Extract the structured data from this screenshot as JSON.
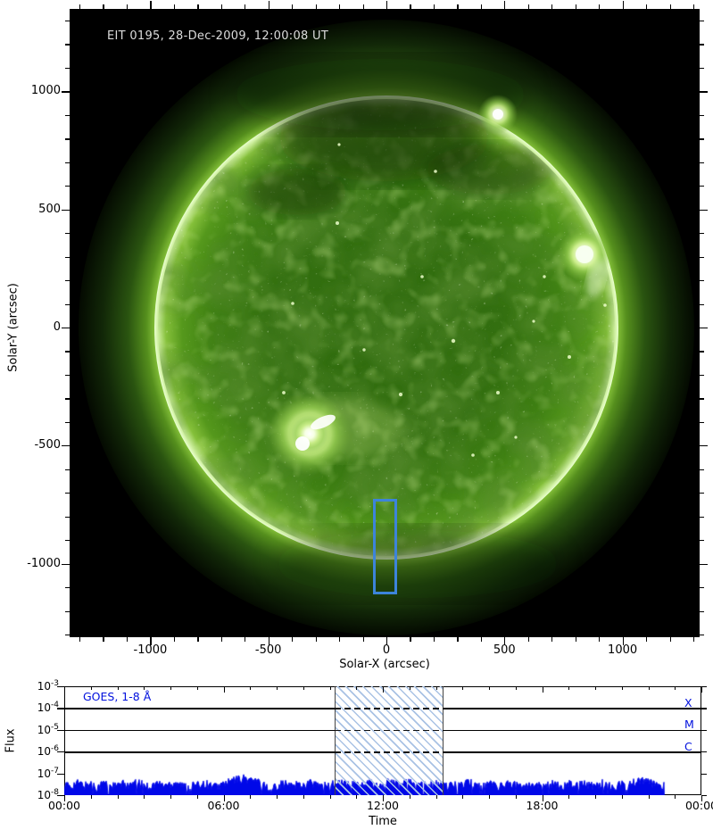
{
  "solar_image": {
    "title": "EIT 0195, 28-Dec-2009, 12:00:08 UT",
    "xlabel": "Solar-X (arcsec)",
    "ylabel": "Solar-Y (arcsec)",
    "x_tick_values": [
      -1000,
      -500,
      0,
      500,
      1000
    ],
    "y_tick_values": [
      1000,
      500,
      0,
      -500,
      -1000
    ],
    "minor_tick_step_arcsec": 100,
    "x_range_arcsec": [
      -1341,
      1327
    ],
    "y_range_arcsec": [
      -1312,
      1349
    ],
    "annotation_box_arcsec": {
      "x_min": -57,
      "x_max": 45,
      "y_min": -1130,
      "y_max": -727
    },
    "colors": {
      "background": "#000000",
      "disk_green": "#3f8013",
      "limb_bright": "#eaffd2",
      "corona_glow": "#66a822",
      "annotation_blue": "#3d84da",
      "title_text": "#dcdcdc"
    }
  },
  "chart_data": {
    "type": "line",
    "title": "GOES, 1-8 Å",
    "xlabel": "Time",
    "ylabel": "Flux",
    "x_tick_labels": [
      "00:00",
      "06:00",
      "12:00",
      "18:00",
      "00:00"
    ],
    "x_axis_hours": [
      0,
      24
    ],
    "y_scale": "log",
    "ylim_wm2": [
      1e-08,
      0.001
    ],
    "y_tick_exponents": [
      -3,
      -4,
      -5,
      -6,
      -7,
      -8
    ],
    "grid": "horizontal-solid-at-flare-class-levels",
    "legend_position": "top-left-inside",
    "accent_blue": "#0010dd",
    "hatch_blue": "#a9c2e4",
    "flare_class_lines": [
      {
        "label": "X",
        "flux_wm2": 0.0001
      },
      {
        "label": "M",
        "flux_wm2": 1e-05
      },
      {
        "label": "C",
        "flux_wm2": 1e-06
      }
    ],
    "highlight_window_hours": [
      10.2,
      14.3
    ],
    "series": [
      {
        "name": "GOES 1-8 Å X-ray flux",
        "t_start_hour": 0,
        "t_step_hour": 0.25,
        "t_end_hour": 22.6,
        "unit_scale_wm2": 1e-08,
        "values_1e8": [
          3.2,
          2.6,
          3.8,
          2.9,
          3.5,
          2.4,
          3.9,
          3.0,
          2.7,
          3.6,
          2.8,
          4.0,
          3.1,
          2.5,
          3.7,
          2.9,
          3.4,
          4.1,
          2.6,
          3.3,
          2.8,
          3.9,
          3.0,
          2.5,
          3.4,
          4.3,
          5.6,
          6.3,
          5.2,
          4.4,
          3.6,
          1.6,
          3.0,
          3.8,
          2.7,
          3.5,
          2.9,
          4.0,
          3.1,
          2.6,
          3.7,
          3.0,
          4.2,
          2.8,
          3.5,
          2.7,
          3.9,
          3.2,
          2.6,
          4.4,
          3.4,
          2.9,
          5.0,
          4.2,
          3.1,
          2.7,
          3.8,
          3.0,
          2.5,
          3.6,
          2.9,
          4.1,
          3.3,
          2.6,
          3.8,
          3.1,
          2.7,
          3.9,
          3.2,
          2.6,
          3.7,
          3.0,
          2.8,
          3.9,
          3.2,
          2.6,
          3.6,
          2.9,
          4.0,
          3.3,
          2.7,
          3.8,
          3.0,
          2.5,
          3.6,
          2.9,
          4.4,
          5.0,
          4.1,
          3.3,
          2.8
        ]
      }
    ]
  }
}
